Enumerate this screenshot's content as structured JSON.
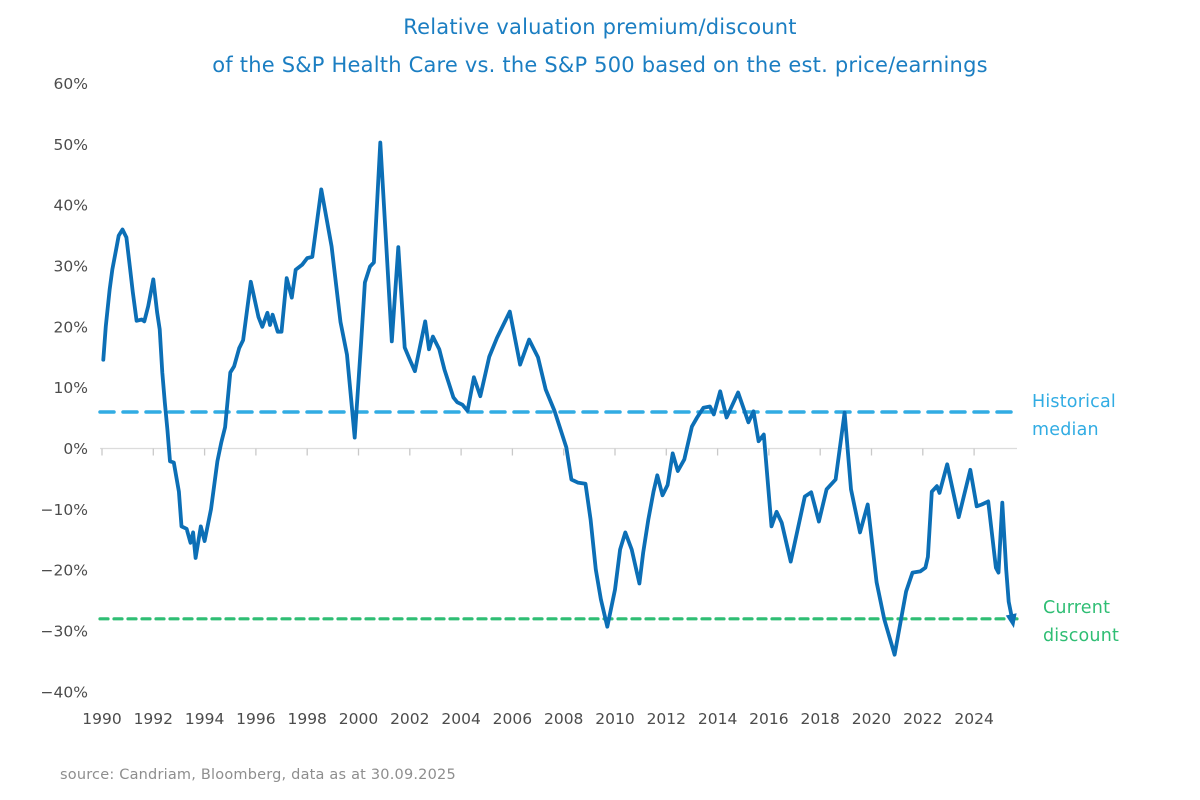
{
  "title": {
    "line1": "Relative valuation premium/discount",
    "line2": "of the S&P Health Care vs. the S&P 500 based on the est. price/earnings",
    "color": "#1B7EC2"
  },
  "annotations": {
    "historical_median": {
      "line1": "Historical",
      "line2": "median",
      "color": "#31ACE3"
    },
    "current_discount": {
      "line1": "Current",
      "line2": "discount",
      "color": "#2FBE74"
    }
  },
  "source": {
    "text": "source: Candriam, Bloomberg, data as at 30.09.2025",
    "color": "#8E8E8E"
  },
  "chart_data": {
    "type": "line",
    "title": "Relative valuation premium/discount of the S&P Health Care vs. the S&P 500 based on the est. price/earnings",
    "xlabel": "",
    "ylabel": "",
    "xlim": [
      1989.9,
      2025.9
    ],
    "ylim": [
      -40,
      60
    ],
    "grid": "single light-gray horizontal line at 0% with small tick marks every 2 years; no other gridlines; no axis box",
    "legend": "none (direct colored labels at right edge)",
    "x_ticks": [
      1990,
      1992,
      1994,
      1996,
      1998,
      2000,
      2002,
      2004,
      2006,
      2008,
      2010,
      2012,
      2014,
      2016,
      2018,
      2020,
      2022,
      2024
    ],
    "y_ticks": [
      {
        "value": 60,
        "label": "60%"
      },
      {
        "value": 50,
        "label": "50%"
      },
      {
        "value": 40,
        "label": "40%"
      },
      {
        "value": 30,
        "label": "30%"
      },
      {
        "value": 20,
        "label": "20%"
      },
      {
        "value": 10,
        "label": "10%"
      },
      {
        "value": 0,
        "label": "0%"
      },
      {
        "value": -10,
        "label": "−10%"
      },
      {
        "value": -20,
        "label": "−20%"
      },
      {
        "value": -30,
        "label": "−30%"
      },
      {
        "value": -40,
        "label": "−40%"
      }
    ],
    "reference_lines": [
      {
        "name": "Historical median",
        "slug": "historical-median-line",
        "value_pct": 6,
        "color": "#31ACE3",
        "dash_array": "14 9",
        "stroke_width": 3.5
      },
      {
        "name": "Current discount",
        "slug": "current-discount-line",
        "value_pct": -28,
        "color": "#2FBE74",
        "dash_array": "8 6",
        "stroke_width": 3.2
      }
    ],
    "series": [
      {
        "name": "S&P Health Care vs. S&P 500 valuation premium/discount (est. P/E, %)",
        "color": "#0C6FB6",
        "points": [
          [
            1990.05,
            14.6
          ],
          [
            1990.15,
            20.1
          ],
          [
            1990.3,
            26.2
          ],
          [
            1990.4,
            29.4
          ],
          [
            1990.55,
            32.7
          ],
          [
            1990.65,
            35.0
          ],
          [
            1990.8,
            36.0
          ],
          [
            1990.95,
            34.7
          ],
          [
            1991.1,
            29.4
          ],
          [
            1991.2,
            25.7
          ],
          [
            1991.35,
            21.0
          ],
          [
            1991.55,
            21.2
          ],
          [
            1991.65,
            20.9
          ],
          [
            1991.8,
            23.4
          ],
          [
            1992.0,
            27.8
          ],
          [
            1992.15,
            22.4
          ],
          [
            1992.25,
            19.6
          ],
          [
            1992.35,
            12.5
          ],
          [
            1992.45,
            7.6
          ],
          [
            1992.55,
            3.1
          ],
          [
            1992.65,
            -2.1
          ],
          [
            1992.8,
            -2.3
          ],
          [
            1993.0,
            -7.1
          ],
          [
            1993.1,
            -12.8
          ],
          [
            1993.3,
            -13.2
          ],
          [
            1993.45,
            -15.5
          ],
          [
            1993.55,
            -13.8
          ],
          [
            1993.65,
            -18.0
          ],
          [
            1993.85,
            -12.8
          ],
          [
            1994.0,
            -15.2
          ],
          [
            1994.25,
            -10.0
          ],
          [
            1994.5,
            -2.1
          ],
          [
            1994.65,
            1.0
          ],
          [
            1994.8,
            3.5
          ],
          [
            1995.0,
            12.5
          ],
          [
            1995.15,
            13.5
          ],
          [
            1995.35,
            16.5
          ],
          [
            1995.5,
            17.8
          ],
          [
            1995.8,
            27.4
          ],
          [
            1996.1,
            21.6
          ],
          [
            1996.25,
            20.0
          ],
          [
            1996.45,
            22.3
          ],
          [
            1996.55,
            20.3
          ],
          [
            1996.65,
            22.0
          ],
          [
            1996.85,
            19.2
          ],
          [
            1997.0,
            19.2
          ],
          [
            1997.2,
            28.0
          ],
          [
            1997.4,
            24.8
          ],
          [
            1997.55,
            29.4
          ],
          [
            1997.8,
            30.2
          ],
          [
            1998.0,
            31.3
          ],
          [
            1998.2,
            31.5
          ],
          [
            1998.55,
            42.6
          ],
          [
            1998.95,
            33.2
          ],
          [
            1999.3,
            20.8
          ],
          [
            1999.55,
            15.4
          ],
          [
            1999.85,
            1.8
          ],
          [
            2000.1,
            17.4
          ],
          [
            2000.25,
            27.3
          ],
          [
            2000.45,
            29.9
          ],
          [
            2000.6,
            30.6
          ],
          [
            2000.85,
            50.3
          ],
          [
            2001.1,
            32.2
          ],
          [
            2001.3,
            17.6
          ],
          [
            2001.55,
            33.1
          ],
          [
            2001.8,
            16.6
          ],
          [
            2002.0,
            14.6
          ],
          [
            2002.2,
            12.7
          ],
          [
            2002.6,
            20.9
          ],
          [
            2002.75,
            16.3
          ],
          [
            2002.9,
            18.4
          ],
          [
            2003.15,
            16.3
          ],
          [
            2003.35,
            13.0
          ],
          [
            2003.7,
            8.4
          ],
          [
            2003.85,
            7.6
          ],
          [
            2004.05,
            7.2
          ],
          [
            2004.25,
            6.2
          ],
          [
            2004.5,
            11.7
          ],
          [
            2004.75,
            8.6
          ],
          [
            2005.1,
            15.1
          ],
          [
            2005.4,
            18.2
          ],
          [
            2005.9,
            22.5
          ],
          [
            2006.3,
            13.8
          ],
          [
            2006.65,
            17.9
          ],
          [
            2007.0,
            15.0
          ],
          [
            2007.3,
            9.7
          ],
          [
            2007.65,
            6.1
          ],
          [
            2008.1,
            0.2
          ],
          [
            2008.3,
            -5.1
          ],
          [
            2008.55,
            -5.6
          ],
          [
            2008.85,
            -5.8
          ],
          [
            2009.05,
            -11.7
          ],
          [
            2009.25,
            -19.9
          ],
          [
            2009.45,
            -24.8
          ],
          [
            2009.7,
            -29.3
          ],
          [
            2010.0,
            -23.2
          ],
          [
            2010.2,
            -16.6
          ],
          [
            2010.4,
            -13.8
          ],
          [
            2010.65,
            -16.6
          ],
          [
            2010.95,
            -22.2
          ],
          [
            2011.1,
            -17.1
          ],
          [
            2011.3,
            -11.7
          ],
          [
            2011.5,
            -7.1
          ],
          [
            2011.65,
            -4.4
          ],
          [
            2011.85,
            -7.7
          ],
          [
            2012.05,
            -6.0
          ],
          [
            2012.25,
            -0.8
          ],
          [
            2012.45,
            -3.7
          ],
          [
            2012.7,
            -1.8
          ],
          [
            2013.0,
            3.6
          ],
          [
            2013.2,
            5.1
          ],
          [
            2013.45,
            6.7
          ],
          [
            2013.7,
            6.9
          ],
          [
            2013.85,
            5.6
          ],
          [
            2014.1,
            9.4
          ],
          [
            2014.35,
            5.1
          ],
          [
            2014.8,
            9.2
          ],
          [
            2015.2,
            4.3
          ],
          [
            2015.4,
            6.1
          ],
          [
            2015.6,
            1.2
          ],
          [
            2015.8,
            2.3
          ],
          [
            2016.1,
            -12.8
          ],
          [
            2016.3,
            -10.4
          ],
          [
            2016.5,
            -12.2
          ],
          [
            2016.85,
            -18.6
          ],
          [
            2017.4,
            -7.9
          ],
          [
            2017.65,
            -7.2
          ],
          [
            2017.95,
            -12.0
          ],
          [
            2018.25,
            -6.7
          ],
          [
            2018.6,
            -5.1
          ],
          [
            2018.95,
            5.9
          ],
          [
            2019.2,
            -6.7
          ],
          [
            2019.55,
            -13.8
          ],
          [
            2019.85,
            -9.2
          ],
          [
            2020.2,
            -22.0
          ],
          [
            2020.5,
            -28.1
          ],
          [
            2020.9,
            -33.9
          ],
          [
            2021.35,
            -23.5
          ],
          [
            2021.6,
            -20.4
          ],
          [
            2021.9,
            -20.2
          ],
          [
            2022.1,
            -19.6
          ],
          [
            2022.2,
            -17.8
          ],
          [
            2022.35,
            -7.1
          ],
          [
            2022.55,
            -6.2
          ],
          [
            2022.65,
            -7.3
          ],
          [
            2022.95,
            -2.6
          ],
          [
            2023.4,
            -11.3
          ],
          [
            2023.85,
            -3.5
          ],
          [
            2024.1,
            -9.5
          ],
          [
            2024.3,
            -9.2
          ],
          [
            2024.55,
            -8.7
          ],
          [
            2024.85,
            -19.6
          ],
          [
            2024.95,
            -20.4
          ],
          [
            2025.1,
            -8.9
          ],
          [
            2025.25,
            -19.9
          ],
          [
            2025.35,
            -25.2
          ],
          [
            2025.5,
            -28.4
          ]
        ]
      }
    ],
    "end_marker": {
      "type": "arrowhead",
      "at": [
        2025.5,
        -28.4
      ],
      "color": "#0C6FB6"
    }
  }
}
